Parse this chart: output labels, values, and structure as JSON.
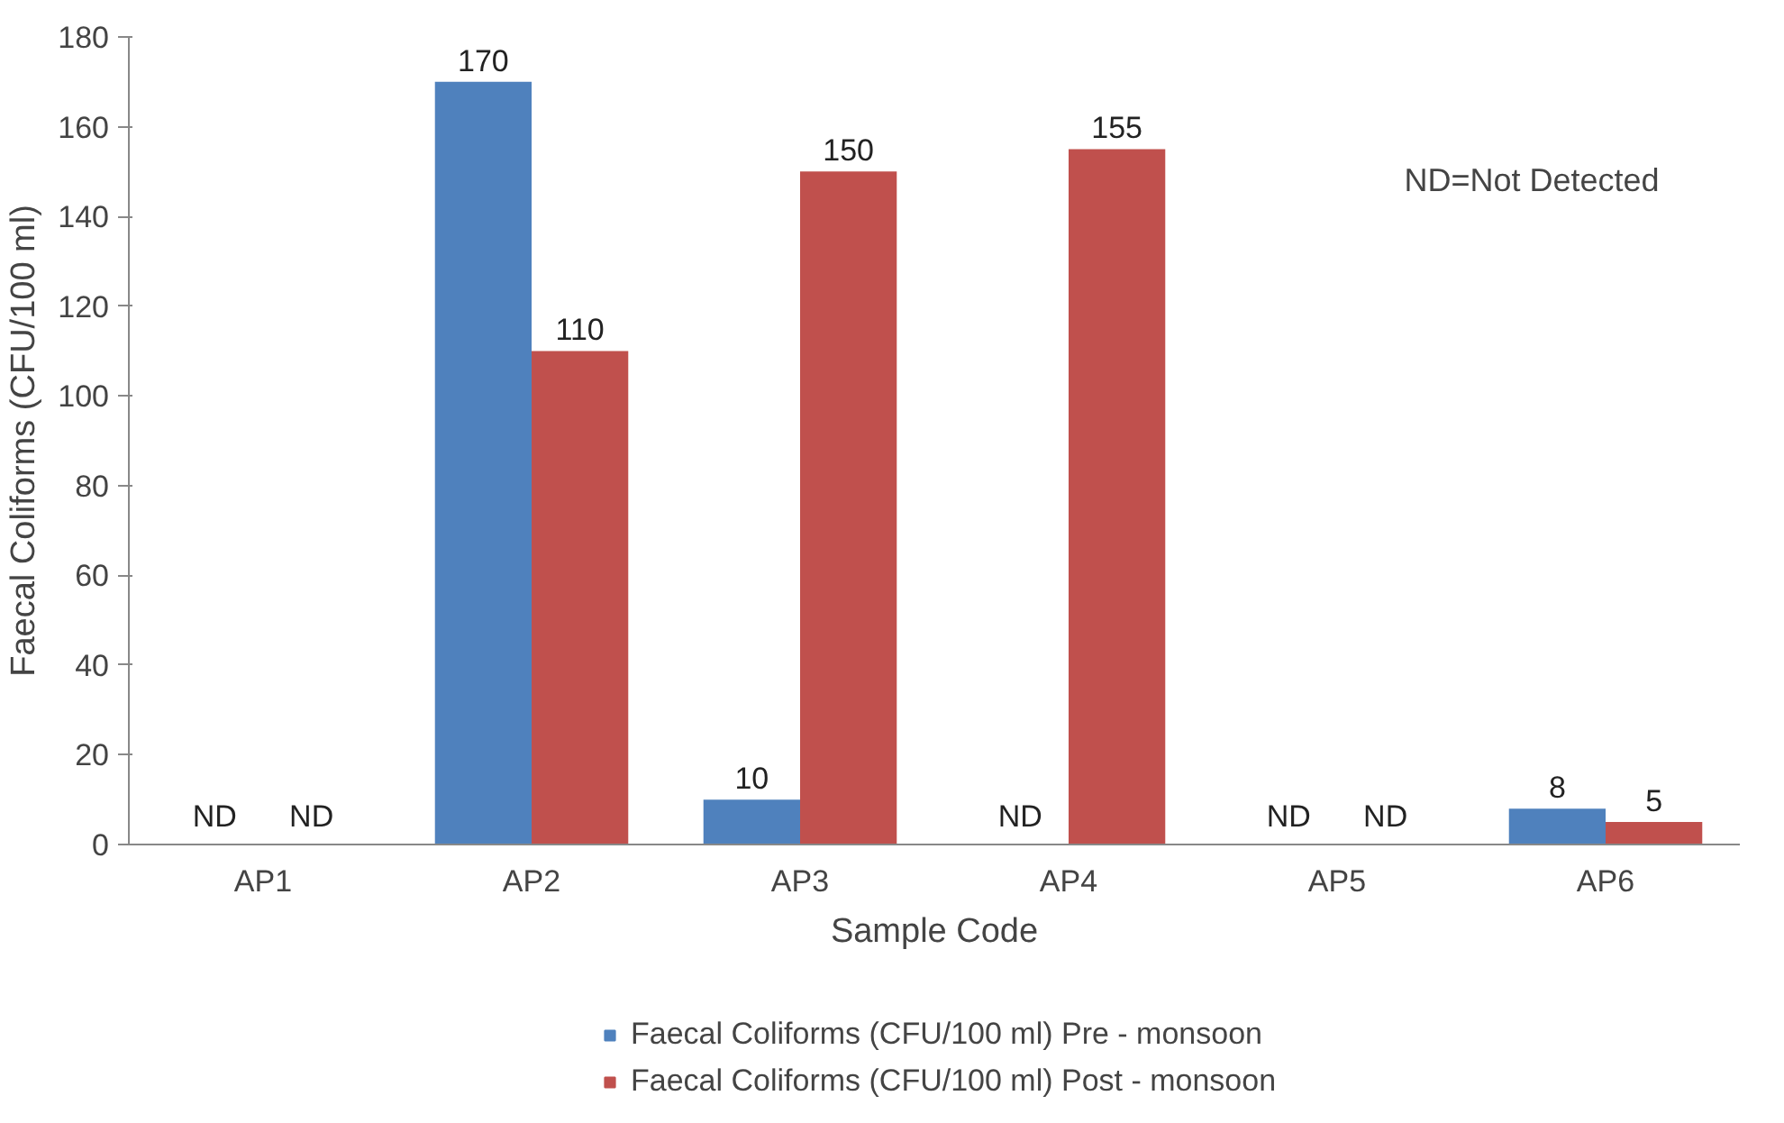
{
  "chart_data": {
    "type": "bar",
    "xlabel": "Sample Code",
    "ylabel": "Faecal Coliforms (CFU/100 ml)",
    "categories": [
      "AP1",
      "AP2",
      "AP3",
      "AP4",
      "AP5",
      "AP6"
    ],
    "series": [
      {
        "name": "Faecal Coliforms (CFU/100 ml) Pre - monsoon",
        "color": "#4f81bd",
        "values": [
          null,
          170,
          10,
          null,
          null,
          8
        ],
        "value_labels": [
          "ND",
          "170",
          "10",
          "ND",
          "ND",
          "8"
        ]
      },
      {
        "name": "Faecal Coliforms (CFU/100 ml) Post - monsoon",
        "color": "#c0504d",
        "values": [
          null,
          110,
          150,
          155,
          null,
          5
        ],
        "value_labels": [
          "ND",
          "110",
          "150",
          "155",
          "ND",
          "5"
        ]
      }
    ],
    "ylim": [
      0,
      180
    ],
    "yticks": [
      0,
      20,
      40,
      60,
      80,
      100,
      120,
      140,
      160,
      180
    ],
    "grid": false,
    "legend": "bottom",
    "annotations": [
      "ND=Not Detected"
    ]
  }
}
